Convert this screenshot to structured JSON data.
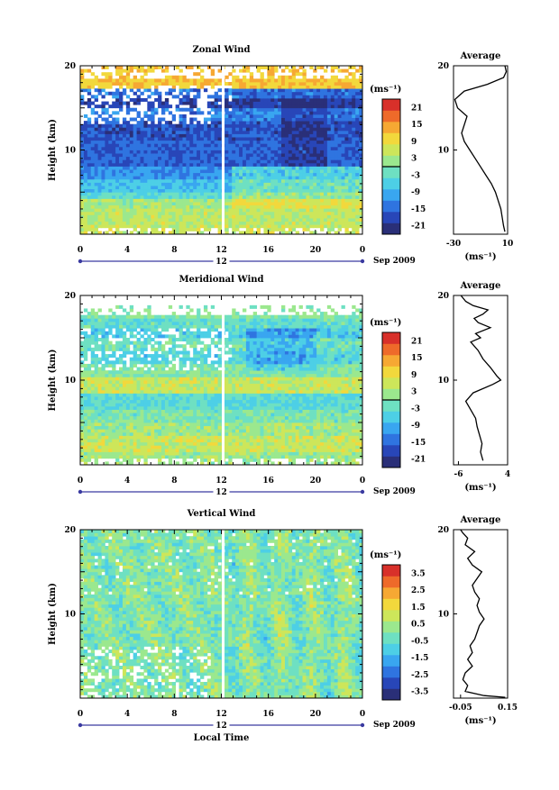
{
  "figure": {
    "xlabel": "Local Time",
    "ylabel": "Height (km)",
    "date_label": "Sep 2009",
    "colorbar_unit_label": "(ms⁻¹)",
    "avg_unit_label": "(ms⁻¹)",
    "avg_title": "Average"
  },
  "colors": {
    "jet": [
      "#2a2f78",
      "#2846b8",
      "#2f74e0",
      "#39a6f0",
      "#4dcfe6",
      "#6ee0c2",
      "#9be88e",
      "#cde65a",
      "#f2d83c",
      "#f6a833",
      "#ee6a2a",
      "#d8302a"
    ]
  },
  "chart_data": [
    {
      "type": "heatmap",
      "id": "zonal",
      "title": "Zonal Wind",
      "x_ticks": [
        "0",
        "4",
        "8",
        "12",
        "16",
        "20",
        "0"
      ],
      "x_range": [
        0,
        24
      ],
      "y_ticks": [
        "20",
        "10"
      ],
      "y_range": [
        0,
        20
      ],
      "day_marker": "12",
      "colorbar_ticks": [
        "21",
        "15",
        "9",
        "3",
        "-3",
        "-9",
        "-15",
        "-21"
      ],
      "colorbar_range": [
        -24,
        24
      ],
      "average_profile": {
        "x_ticks": [
          "-30",
          "10"
        ],
        "x_range": [
          -30,
          10
        ],
        "y_ticks": [
          "20",
          "10"
        ],
        "points": [
          [
            8,
            0.3
          ],
          [
            7,
            1
          ],
          [
            6,
            2
          ],
          [
            5,
            3
          ],
          [
            3,
            4
          ],
          [
            1,
            5
          ],
          [
            -2,
            6
          ],
          [
            -6,
            7
          ],
          [
            -10,
            8
          ],
          [
            -14,
            9
          ],
          [
            -18,
            10
          ],
          [
            -22,
            11
          ],
          [
            -24,
            12
          ],
          [
            -22,
            13
          ],
          [
            -20,
            14
          ],
          [
            -27,
            15
          ],
          [
            -29,
            16
          ],
          [
            -22,
            17
          ],
          [
            -5,
            17.8
          ],
          [
            7,
            18.6
          ],
          [
            9,
            19.3
          ],
          [
            8,
            20
          ]
        ]
      }
    },
    {
      "type": "heatmap",
      "id": "meridional",
      "title": "Meridional Wind",
      "x_ticks": [
        "0",
        "4",
        "8",
        "12",
        "16",
        "20",
        "0"
      ],
      "x_range": [
        0,
        24
      ],
      "y_ticks": [
        "20",
        "10"
      ],
      "y_range": [
        0,
        20
      ],
      "day_marker": "12",
      "colorbar_ticks": [
        "21",
        "15",
        "9",
        "3",
        "-3",
        "-9",
        "-15",
        "-21"
      ],
      "colorbar_range": [
        -24,
        24
      ],
      "average_profile": {
        "x_ticks": [
          "-6",
          "4"
        ],
        "x_range": [
          -7,
          4
        ],
        "y_ticks": [
          "20",
          "10"
        ],
        "points": [
          [
            -1,
            0.5
          ],
          [
            -1.5,
            1.5
          ],
          [
            -1.2,
            2.5
          ],
          [
            -1.7,
            3.5
          ],
          [
            -2.2,
            4.5
          ],
          [
            -2.5,
            5.5
          ],
          [
            -3.5,
            6.5
          ],
          [
            -4.5,
            7.5
          ],
          [
            -3,
            8.5
          ],
          [
            1,
            9.5
          ],
          [
            2.6,
            10
          ],
          [
            1.8,
            10.5
          ],
          [
            0.5,
            11.5
          ],
          [
            -1,
            12.5
          ],
          [
            -2,
            13.5
          ],
          [
            -3.5,
            14.5
          ],
          [
            -1.5,
            15
          ],
          [
            -2.5,
            15.5
          ],
          [
            0.5,
            16.2
          ],
          [
            -2,
            16.8
          ],
          [
            -2.8,
            17.3
          ],
          [
            -1,
            17.8
          ],
          [
            0,
            18.3
          ],
          [
            -3,
            18.8
          ],
          [
            -4.5,
            19.3
          ],
          [
            -5.5,
            20
          ]
        ]
      }
    },
    {
      "type": "heatmap",
      "id": "vertical",
      "title": "Vertical Wind",
      "x_ticks": [
        "0",
        "4",
        "8",
        "12",
        "16",
        "20",
        "0"
      ],
      "x_range": [
        0,
        24
      ],
      "y_ticks": [
        "20",
        "10"
      ],
      "y_range": [
        0,
        20
      ],
      "day_marker": "12",
      "colorbar_ticks": [
        "3.5",
        "2.5",
        "1.5",
        "0.5",
        "-0.5",
        "-1.5",
        "-2.5",
        "-3.5"
      ],
      "colorbar_range": [
        -4,
        4
      ],
      "average_profile": {
        "x_ticks": [
          "-0.05",
          "0.15"
        ],
        "x_range": [
          -0.08,
          0.15
        ],
        "y_ticks": [
          "20",
          "10"
        ],
        "points": [
          [
            0.14,
            0.1
          ],
          [
            0.05,
            0.3
          ],
          [
            -0.03,
            0.8
          ],
          [
            -0.02,
            1.5
          ],
          [
            -0.04,
            2.2
          ],
          [
            -0.03,
            3
          ],
          [
            0,
            3.8
          ],
          [
            -0.02,
            4.6
          ],
          [
            0,
            5.4
          ],
          [
            -0.01,
            6.2
          ],
          [
            0.01,
            7
          ],
          [
            0.02,
            7.8
          ],
          [
            0.03,
            8.6
          ],
          [
            0.05,
            9.4
          ],
          [
            0.03,
            10.2
          ],
          [
            0.02,
            11
          ],
          [
            0.03,
            11.8
          ],
          [
            0.01,
            12.6
          ],
          [
            0,
            13.4
          ],
          [
            0.02,
            14.2
          ],
          [
            0.04,
            15
          ],
          [
            0,
            15.8
          ],
          [
            -0.02,
            16.6
          ],
          [
            0.01,
            17.4
          ],
          [
            -0.03,
            18.2
          ],
          [
            -0.02,
            19
          ],
          [
            -0.04,
            19.6
          ],
          [
            -0.05,
            20
          ]
        ]
      }
    }
  ]
}
